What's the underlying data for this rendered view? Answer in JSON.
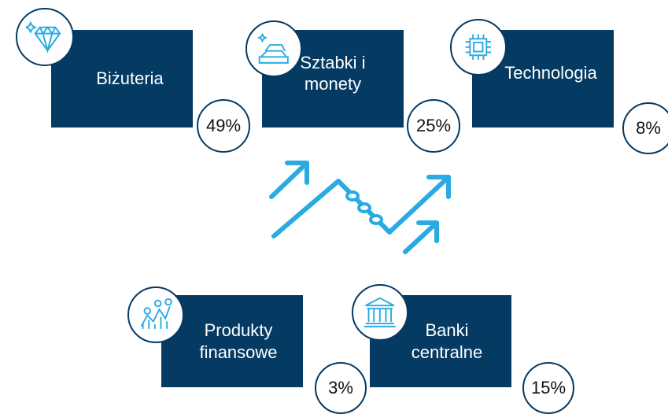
{
  "items": [
    {
      "label": "Biżuteria",
      "share": "49%"
    },
    {
      "label": "Sztabki i monety",
      "share": "25%"
    },
    {
      "label": "Technologia",
      "share": "8%"
    },
    {
      "label": "Produkty finansowe",
      "share": "3%"
    },
    {
      "label": "Banki centralne",
      "share": "15%"
    }
  ]
}
